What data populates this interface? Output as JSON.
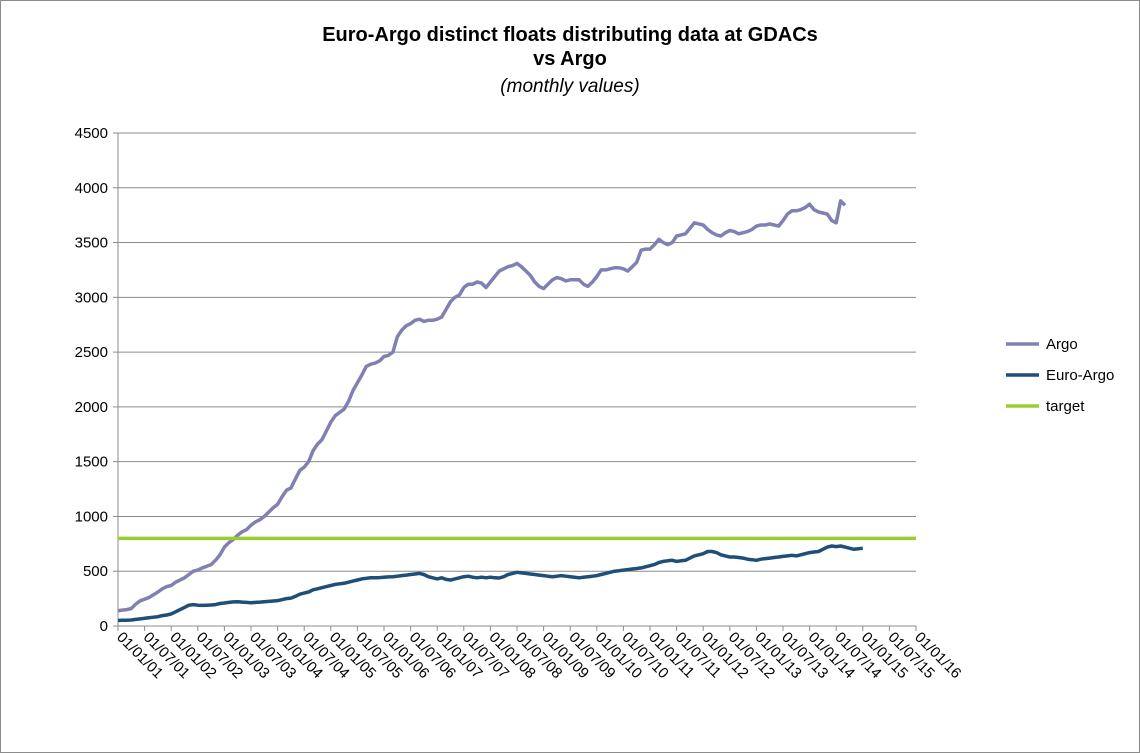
{
  "chart_data": {
    "type": "line",
    "title": "Euro-Argo distinct floats distributing data at GDACs",
    "title_line2": "vs Argo",
    "subtitle": "(monthly values)",
    "xlabel": "",
    "ylabel": "",
    "ylim": [
      0,
      4500
    ],
    "yticks": [
      "0",
      "500",
      "1000",
      "1500",
      "2000",
      "2500",
      "3000",
      "3500",
      "4000",
      "4500"
    ],
    "xticks": [
      "01/01/01",
      "01/07/01",
      "01/01/02",
      "01/07/02",
      "01/01/03",
      "01/07/03",
      "01/01/04",
      "01/07/04",
      "01/01/05",
      "01/07/05",
      "01/01/06",
      "01/07/06",
      "01/01/07",
      "01/07/07",
      "01/01/08",
      "01/07/08",
      "01/01/09",
      "01/07/09",
      "01/01/10",
      "01/07/10",
      "01/01/11",
      "01/07/11",
      "01/01/12",
      "01/07/12",
      "01/01/13",
      "01/07/13",
      "01/01/14",
      "01/07/14",
      "01/01/15",
      "01/07/15",
      "01/01/16"
    ],
    "grid": true,
    "legend_position": "right",
    "x_start": "2001-01",
    "series": [
      {
        "name": "Argo",
        "color": "#8080b4",
        "values": [
          140,
          145,
          150,
          160,
          200,
          230,
          245,
          260,
          285,
          310,
          340,
          360,
          370,
          400,
          420,
          440,
          470,
          500,
          510,
          530,
          545,
          560,
          600,
          650,
          720,
          760,
          790,
          830,
          860,
          880,
          920,
          950,
          970,
          1000,
          1040,
          1080,
          1110,
          1180,
          1240,
          1260,
          1340,
          1420,
          1450,
          1500,
          1600,
          1660,
          1700,
          1780,
          1860,
          1920,
          1950,
          1980,
          2050,
          2150,
          2220,
          2290,
          2370,
          2390,
          2400,
          2420,
          2460,
          2470,
          2500,
          2640,
          2700,
          2740,
          2760,
          2790,
          2800,
          2780,
          2790,
          2790,
          2800,
          2820,
          2890,
          2960,
          3000,
          3020,
          3090,
          3120,
          3120,
          3140,
          3130,
          3090,
          3140,
          3190,
          3240,
          3260,
          3280,
          3290,
          3310,
          3280,
          3240,
          3200,
          3140,
          3100,
          3080,
          3120,
          3160,
          3180,
          3170,
          3150,
          3160,
          3160,
          3160,
          3120,
          3100,
          3140,
          3190,
          3250,
          3250,
          3260,
          3270,
          3270,
          3260,
          3240,
          3280,
          3320,
          3430,
          3440,
          3440,
          3480,
          3530,
          3500,
          3480,
          3500,
          3560,
          3570,
          3580,
          3630,
          3680,
          3670,
          3660,
          3620,
          3590,
          3570,
          3560,
          3590,
          3610,
          3600,
          3580,
          3590,
          3600,
          3620,
          3650,
          3660,
          3660,
          3670,
          3660,
          3650,
          3700,
          3760,
          3790,
          3790,
          3800,
          3820,
          3850,
          3800,
          3780,
          3770,
          3760,
          3700,
          3680,
          3880,
          3840
        ]
      },
      {
        "name": "Euro-Argo",
        "color": "#1f4e79",
        "values": [
          50,
          52,
          53,
          55,
          60,
          65,
          70,
          75,
          80,
          85,
          95,
          100,
          110,
          130,
          150,
          170,
          190,
          195,
          190,
          188,
          190,
          192,
          195,
          205,
          210,
          215,
          220,
          222,
          218,
          215,
          212,
          215,
          218,
          222,
          225,
          228,
          232,
          240,
          250,
          255,
          270,
          290,
          300,
          310,
          330,
          340,
          350,
          360,
          370,
          380,
          385,
          390,
          400,
          410,
          420,
          430,
          435,
          440,
          440,
          442,
          445,
          448,
          450,
          455,
          460,
          465,
          470,
          475,
          480,
          470,
          450,
          440,
          430,
          440,
          425,
          420,
          430,
          440,
          450,
          455,
          445,
          440,
          445,
          440,
          445,
          440,
          438,
          450,
          470,
          480,
          490,
          485,
          480,
          475,
          470,
          465,
          460,
          455,
          450,
          455,
          460,
          455,
          450,
          445,
          440,
          445,
          450,
          455,
          460,
          470,
          480,
          490,
          500,
          505,
          510,
          515,
          520,
          525,
          530,
          540,
          550,
          560,
          580,
          590,
          595,
          600,
          590,
          595,
          600,
          620,
          640,
          650,
          660,
          680,
          680,
          670,
          650,
          640,
          630,
          630,
          625,
          620,
          610,
          605,
          600,
          610,
          615,
          620,
          625,
          630,
          635,
          640,
          645,
          640,
          650,
          660,
          670,
          675,
          680,
          700,
          720,
          730,
          725,
          730,
          720,
          710,
          700,
          705,
          710
        ]
      },
      {
        "name": "target",
        "color": "#9acd32",
        "values": [
          800,
          800
        ]
      }
    ]
  }
}
